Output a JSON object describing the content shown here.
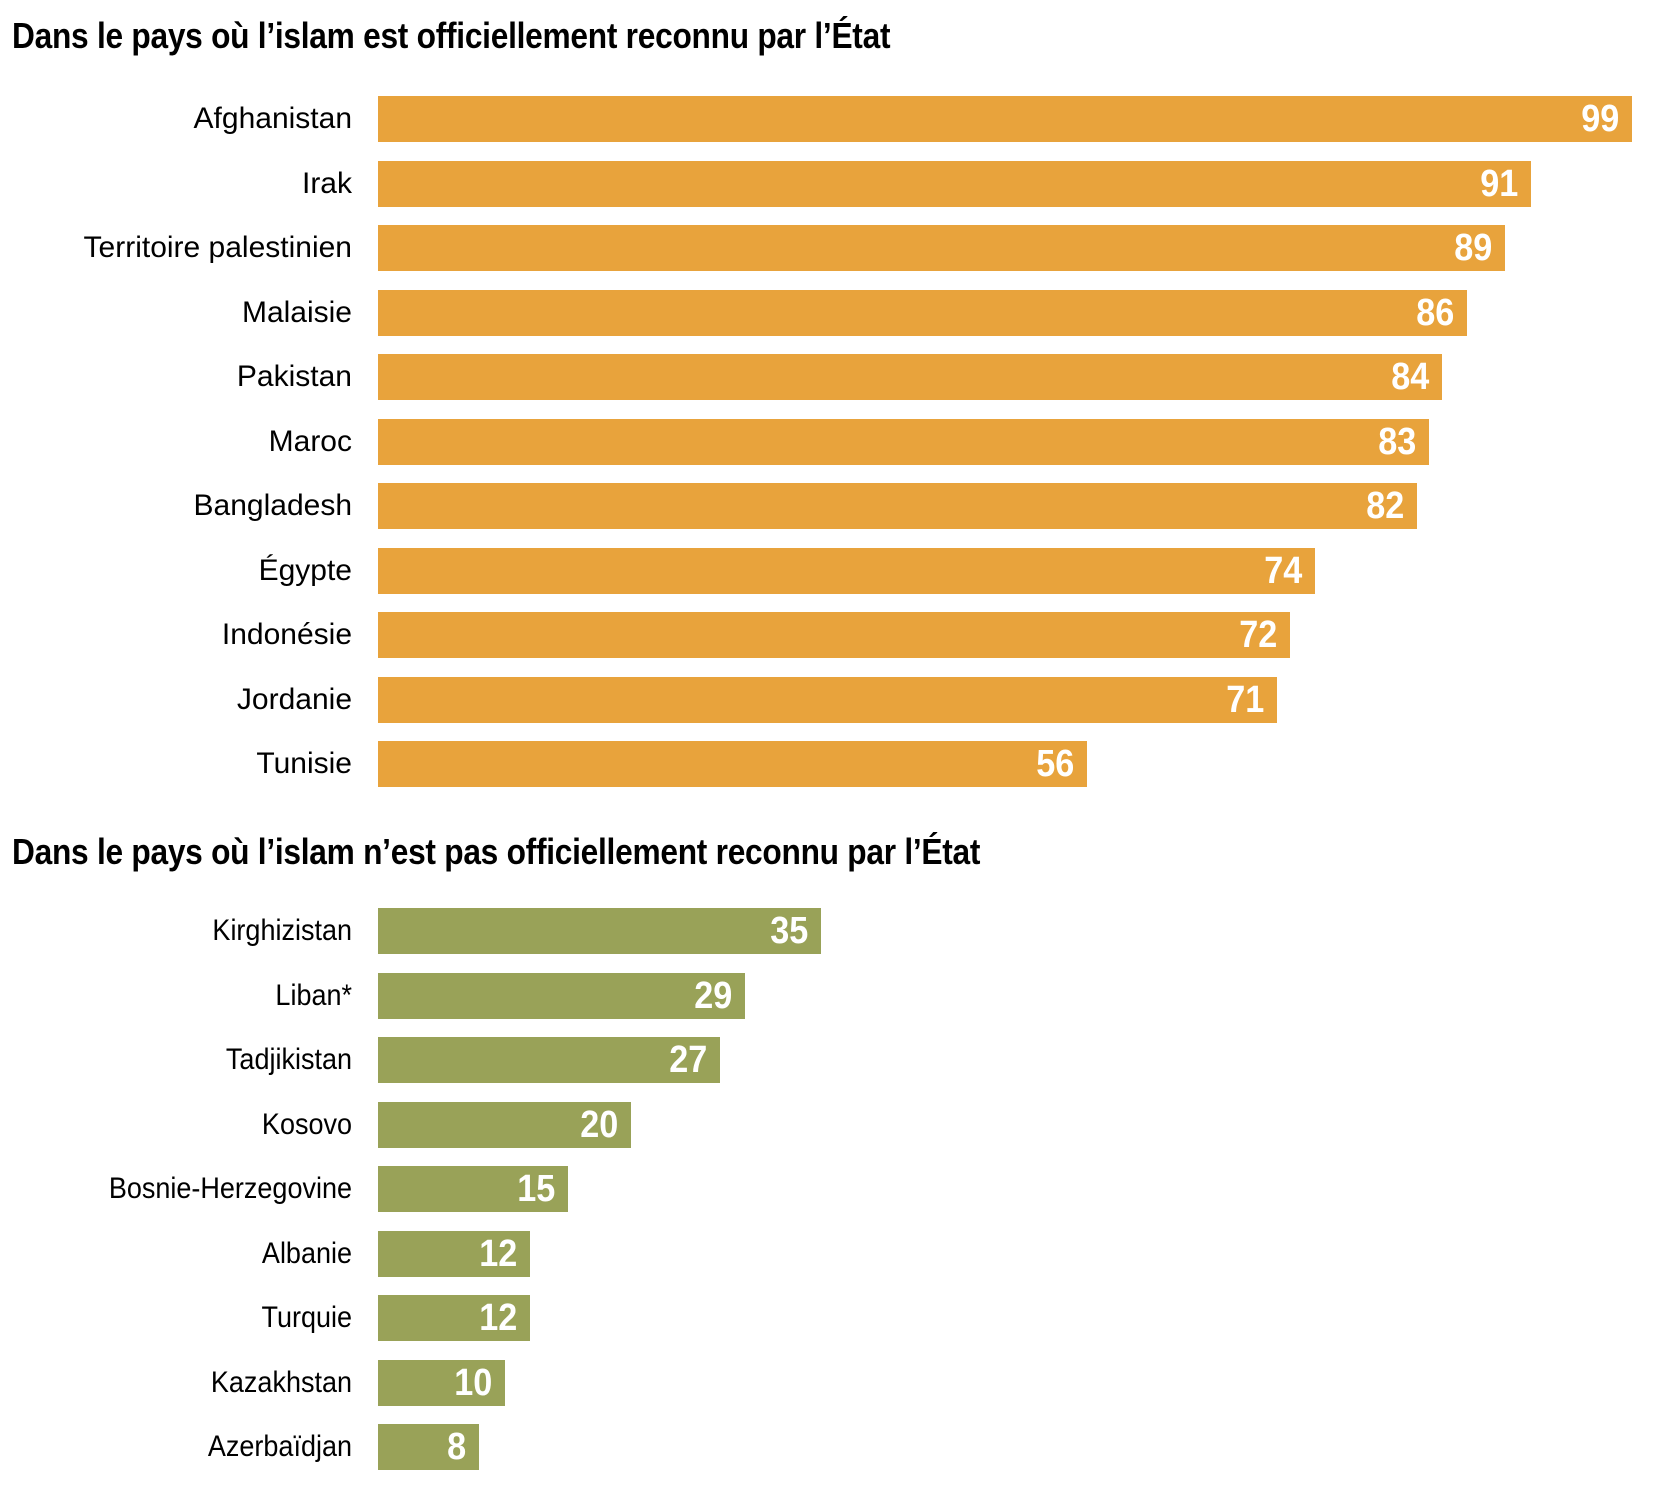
{
  "chart_data": [
    {
      "type": "bar",
      "orientation": "horizontal",
      "title": "Dans le pays où l’islam est officiellement reconnu par l’État",
      "categories": [
        "Afghanistan",
        "Irak",
        "Territoire palestinien",
        "Malaisie",
        "Pakistan",
        "Maroc",
        "Bangladesh",
        "Égypte",
        "Indonésie",
        "Jordanie",
        "Tunisie"
      ],
      "values": [
        99,
        91,
        89,
        86,
        84,
        83,
        82,
        74,
        72,
        71,
        56
      ],
      "bar_color": "#E8A33C",
      "value_label_color": "#FFFFFF",
      "label_color": "#000000",
      "xlim": [
        0,
        99
      ],
      "grid": false,
      "value_labels": "inside-right"
    },
    {
      "type": "bar",
      "orientation": "horizontal",
      "title": "Dans le pays où l’islam n’est pas officiellement reconnu par l’État",
      "categories": [
        "Kirghizistan",
        "Liban*",
        "Tadjikistan",
        "Kosovo",
        "Bosnie-Herzegovine",
        "Albanie",
        "Turquie",
        "Kazakhstan",
        "Azerbaïdjan"
      ],
      "values": [
        35,
        29,
        27,
        20,
        15,
        12,
        12,
        10,
        8
      ],
      "bar_color": "#99A258",
      "value_label_color": "#FFFFFF",
      "label_color": "#000000",
      "xlim": [
        0,
        99
      ],
      "grid": false,
      "value_labels": "inside-right"
    }
  ]
}
